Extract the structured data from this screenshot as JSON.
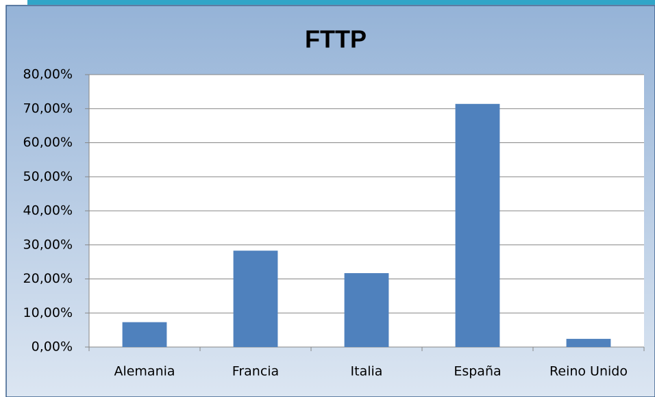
{
  "chart_data": {
    "type": "bar",
    "title": "FTTP",
    "categories": [
      "Alemania",
      "Francia",
      "Italia",
      "España",
      "Reino Unido"
    ],
    "values": [
      7.3,
      28.3,
      21.7,
      71.4,
      2.4
    ],
    "color": "#4f81bd",
    "ylim": [
      0,
      80
    ],
    "yticks": [
      {
        "value": 0,
        "label": "0,00%"
      },
      {
        "value": 10,
        "label": "10,00%"
      },
      {
        "value": 20,
        "label": "20,00%"
      },
      {
        "value": 30,
        "label": "30,00%"
      },
      {
        "value": 40,
        "label": "40,00%"
      },
      {
        "value": 50,
        "label": "50,00%"
      },
      {
        "value": 60,
        "label": "60,00%"
      },
      {
        "value": 70,
        "label": "70,00%"
      },
      {
        "value": 80,
        "label": "80,00%"
      }
    ],
    "grid": true
  }
}
